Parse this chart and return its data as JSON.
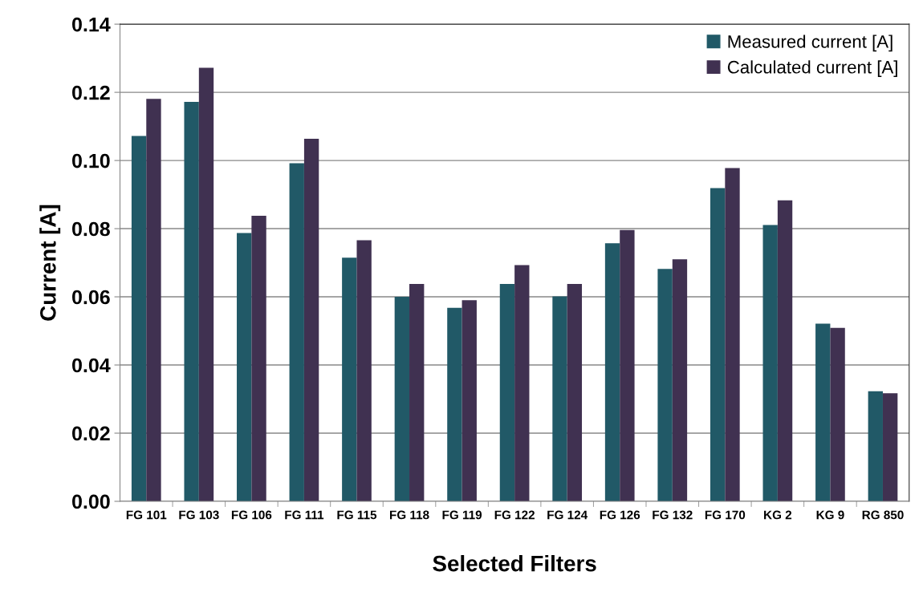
{
  "chart_data": {
    "type": "bar",
    "xlabel": "Selected Filters",
    "ylabel": "Current [A]",
    "categories": [
      "FG 101",
      "FG 103",
      "FG 106",
      "FG 111",
      "FG 115",
      "FG 118",
      "FG 119",
      "FG 122",
      "FG 124",
      "FG 126",
      "FG 132",
      "FG 170",
      "KG 2",
      "KG 9",
      "RG 850"
    ],
    "series": [
      {
        "name": "Measured current [A]",
        "color": "#215967",
        "values": [
          0.1072,
          0.1172,
          0.0787,
          0.0992,
          0.0715,
          0.06,
          0.0568,
          0.0638,
          0.0601,
          0.0757,
          0.0682,
          0.0919,
          0.0811,
          0.0521,
          0.0323
        ]
      },
      {
        "name": "Calculated current [A]",
        "color": "#403151",
        "values": [
          0.1181,
          0.1272,
          0.0838,
          0.1064,
          0.0766,
          0.0638,
          0.059,
          0.0693,
          0.0638,
          0.0796,
          0.071,
          0.0978,
          0.0883,
          0.0509,
          0.0317
        ]
      }
    ],
    "ylim": [
      0,
      0.14
    ],
    "yticks": [
      {
        "value": 0,
        "label": "0.00"
      },
      {
        "value": 0.02,
        "label": "0.02"
      },
      {
        "value": 0.04,
        "label": "0.04"
      },
      {
        "value": 0.06,
        "label": "0.06"
      },
      {
        "value": 0.08,
        "label": "0.08"
      },
      {
        "value": 0.1,
        "label": "0.10"
      },
      {
        "value": 0.12,
        "label": "0.12"
      },
      {
        "value": 0.14,
        "label": "0.14"
      }
    ],
    "grid": "y",
    "legend": "top right"
  }
}
